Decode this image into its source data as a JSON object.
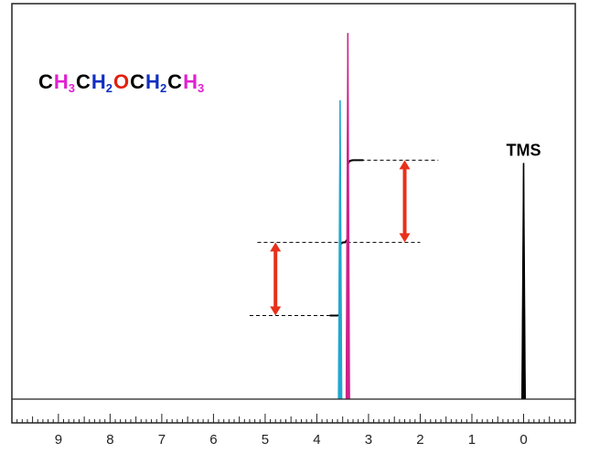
{
  "chart_data": {
    "type": "line",
    "title": "",
    "xlabel": "",
    "ylabel": "",
    "x_axis": {
      "range": [
        9.9,
        -1.0
      ],
      "direction": "decreasing",
      "major_ticks": [
        9,
        8,
        7,
        6,
        5,
        4,
        3,
        2,
        1,
        0
      ],
      "major_tick_labels": [
        "9",
        "8",
        "7",
        "6",
        "5",
        "4",
        "3",
        "2",
        "1",
        "0"
      ],
      "minor_tick_step": 0.1
    },
    "y_axis": {
      "range": [
        0,
        10
      ],
      "visible": false
    },
    "grid": false,
    "legend": "none",
    "formula": {
      "segments": [
        {
          "text": "C",
          "color": "#000000",
          "sub": false
        },
        {
          "text": "H",
          "color": "#e020d0",
          "sub": false
        },
        {
          "text": "3",
          "color": "#e020d0",
          "sub": true
        },
        {
          "text": "C",
          "color": "#000000",
          "sub": false
        },
        {
          "text": "H",
          "color": "#1030c0",
          "sub": false
        },
        {
          "text": "2",
          "color": "#1030c0",
          "sub": true
        },
        {
          "text": "O",
          "color": "#e02010",
          "sub": false
        },
        {
          "text": "C",
          "color": "#000000",
          "sub": false
        },
        {
          "text": "H",
          "color": "#1030c0",
          "sub": false
        },
        {
          "text": "2",
          "color": "#1030c0",
          "sub": true
        },
        {
          "text": "C",
          "color": "#000000",
          "sub": false
        },
        {
          "text": "H",
          "color": "#e020d0",
          "sub": false
        },
        {
          "text": "3",
          "color": "#e020d0",
          "sub": true
        }
      ]
    },
    "series": [
      {
        "ppm": 3.55,
        "height": 10.0,
        "color": "#20a8d0"
      },
      {
        "ppm": 3.4,
        "height": 12.25,
        "color": "#d0208a"
      },
      {
        "ppm": 0.0,
        "height": 7.9,
        "color": "#000000",
        "label": "TMS"
      }
    ],
    "integral": {
      "x_start_ppm": 3.75,
      "x_end_ppm": 3.1,
      "levels": [
        2.8,
        5.25,
        8.0
      ],
      "color": "#000000"
    },
    "guide_lines": [
      {
        "y": 2.8,
        "from_ppm": 5.3,
        "to_ppm": 3.75
      },
      {
        "y": 5.25,
        "from_ppm": 5.15,
        "to_ppm": 2.0
      },
      {
        "y": 8.0,
        "from_ppm": 3.15,
        "to_ppm": 1.65
      }
    ],
    "integration_arrows": [
      {
        "ppm": 4.8,
        "from_y": 2.8,
        "to_y": 5.25,
        "color": "#e8301a"
      },
      {
        "ppm": 2.3,
        "from_y": 5.25,
        "to_y": 8.0,
        "color": "#e8301a"
      }
    ],
    "colors": {
      "axis": "#222222",
      "baseline": "#222222"
    }
  }
}
